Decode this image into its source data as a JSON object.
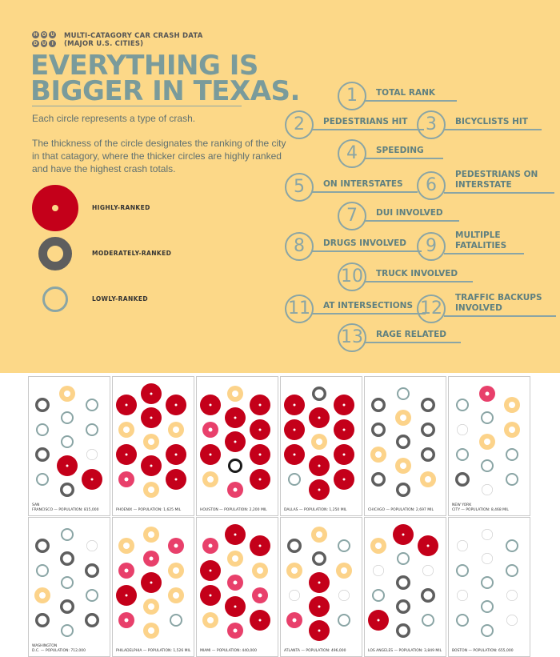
{
  "colors": {
    "background": "#fcd888",
    "title": "#7a9b9b",
    "key": "#8aa5a5",
    "high": "#c4001a",
    "medium": "#5e5e5e",
    "low": "#8aa5a5",
    "pink": "#e8406b",
    "light": "#fcd38a",
    "white_ring": "#cfcfcf",
    "black": "#1a1a1a"
  },
  "logo": {
    "row1": [
      "H",
      "O",
      "U"
    ],
    "row2": [
      "D",
      "U",
      "I"
    ]
  },
  "header": {
    "subtitle_line1": "MULTI-CATAGORY CAR CRASH DATA",
    "subtitle_line2": "(MAJOR U.S. CITIES)",
    "title_line1": "EVERYTHING IS",
    "title_line2": "BIGGER IN TEXAS.",
    "desc1": "Each circle represents a type of crash.",
    "desc2": "The thickness of the circle designates the ranking of the city in that catagory, where the thicker circles are highly ranked and have the highest crash totals."
  },
  "legend": [
    {
      "label": "HIGHLY-RANKED",
      "level": "high"
    },
    {
      "label": "MODERATELY-RANKED",
      "level": "medium"
    },
    {
      "label": "LOWLY-RANKED",
      "level": "low"
    }
  ],
  "key": [
    {
      "num": "1",
      "line1": "TOTAL RANK",
      "line2": ""
    },
    {
      "num": "2",
      "line1": "PEDESTRIANS HIT",
      "line2": ""
    },
    {
      "num": "3",
      "line1": "BICYCLISTS HIT",
      "line2": ""
    },
    {
      "num": "4",
      "line1": "SPEEDING",
      "line2": ""
    },
    {
      "num": "5",
      "line1": "ON INTERSTATES",
      "line2": ""
    },
    {
      "num": "6",
      "line1": "PEDESTRIANS ON",
      "line2": "INTERSTATE"
    },
    {
      "num": "7",
      "line1": "DUI INVOLVED",
      "line2": ""
    },
    {
      "num": "8",
      "line1": "DRUGS INVOLVED",
      "line2": ""
    },
    {
      "num": "9",
      "line1": "MULTIPLE",
      "line2": "FATALITIES"
    },
    {
      "num": "10",
      "line1": "TRUCK INVOLVED",
      "line2": ""
    },
    {
      "num": "11",
      "line1": "AT INTERSECTIONS",
      "line2": ""
    },
    {
      "num": "12",
      "line1": "TRAFFIC BACKUPS",
      "line2": "INVOLVED"
    },
    {
      "num": "13",
      "line1": "RAGE RELATED",
      "line2": ""
    }
  ],
  "cities": [
    {
      "line1": "SAN",
      "line2": "FRANCISCO — POPULATION: 815,000",
      "circles": [
        "medium",
        "light",
        "low",
        "low",
        "low",
        "low",
        "medium",
        "low",
        "white_ring",
        "low",
        "high",
        "high",
        "medium"
      ]
    },
    {
      "line1": "",
      "line2": "PHOENIX — POPULATION: 1,625 MIL",
      "circles": [
        "high",
        "high",
        "high",
        "light",
        "high",
        "light",
        "high",
        "light",
        "high",
        "pink",
        "high",
        "high",
        "light"
      ]
    },
    {
      "line1": "",
      "line2": "HOUSTON — POPULATION: 2,200 MIL",
      "circles": [
        "high",
        "light",
        "high",
        "pink",
        "high",
        "high",
        "high",
        "high",
        "high",
        "light",
        "black",
        "high",
        "pink"
      ]
    },
    {
      "line1": "",
      "line2": "DALLAS — POPULATION: 1,250 MIL",
      "circles": [
        "high",
        "medium",
        "high",
        "high",
        "high",
        "high",
        "high",
        "light",
        "high",
        "low",
        "high",
        "high",
        "high"
      ]
    },
    {
      "line1": "",
      "line2": "CHICAGO — POPULATION: 2,697 MIL",
      "circles": [
        "medium",
        "low",
        "medium",
        "medium",
        "light",
        "medium",
        "light",
        "medium",
        "medium",
        "medium",
        "light",
        "light",
        "medium"
      ]
    },
    {
      "line1": "NEW YORK",
      "line2": "CITY — POPULATION: 8,468 MIL",
      "circles": [
        "low",
        "pink",
        "light",
        "white_ring",
        "low",
        "light",
        "low",
        "light",
        "low",
        "medium",
        "low",
        "low",
        "white_ring"
      ]
    },
    {
      "line1": "WASHINGTON",
      "line2": "D.C. — POPULATION: 712,000",
      "circles": [
        "medium",
        "low",
        "white_ring",
        "low",
        "medium",
        "medium",
        "light",
        "low",
        "low",
        "medium",
        "medium",
        "medium",
        "low"
      ]
    },
    {
      "line1": "",
      "line2": "PHILADELPHIA — POPULATION: 1,526 MIL",
      "circles": [
        "light",
        "light",
        "pink",
        "pink",
        "pink",
        "light",
        "high",
        "high",
        "light",
        "pink",
        "light",
        "low",
        "light"
      ]
    },
    {
      "line1": "",
      "line2": "MIAMI — POPULATION: 440,000",
      "circles": [
        "pink",
        "high",
        "high",
        "high",
        "light",
        "light",
        "high",
        "pink",
        "pink",
        "light",
        "high",
        "high",
        "pink"
      ]
    },
    {
      "line1": "",
      "line2": "ATLANTA — POPULATION: 496,000",
      "circles": [
        "medium",
        "light",
        "low",
        "light",
        "medium",
        "light",
        "white_ring",
        "high",
        "white_ring",
        "pink",
        "high",
        "low",
        "high"
      ]
    },
    {
      "line1": "",
      "line2": "LOS ANGELES — POPULATION: 3,849 MIL",
      "circles": [
        "light",
        "high",
        "high",
        "white_ring",
        "low",
        "white_ring",
        "low",
        "medium",
        "medium",
        "high",
        "medium",
        "low",
        "medium"
      ]
    },
    {
      "line1": "",
      "line2": "BOSTON — POPULATION: 655,000",
      "circles": [
        "white_ring",
        "white_ring",
        "low",
        "low",
        "white_ring",
        "low",
        "white_ring",
        "low",
        "white_ring",
        "low",
        "low",
        "white_ring",
        "low"
      ]
    }
  ]
}
